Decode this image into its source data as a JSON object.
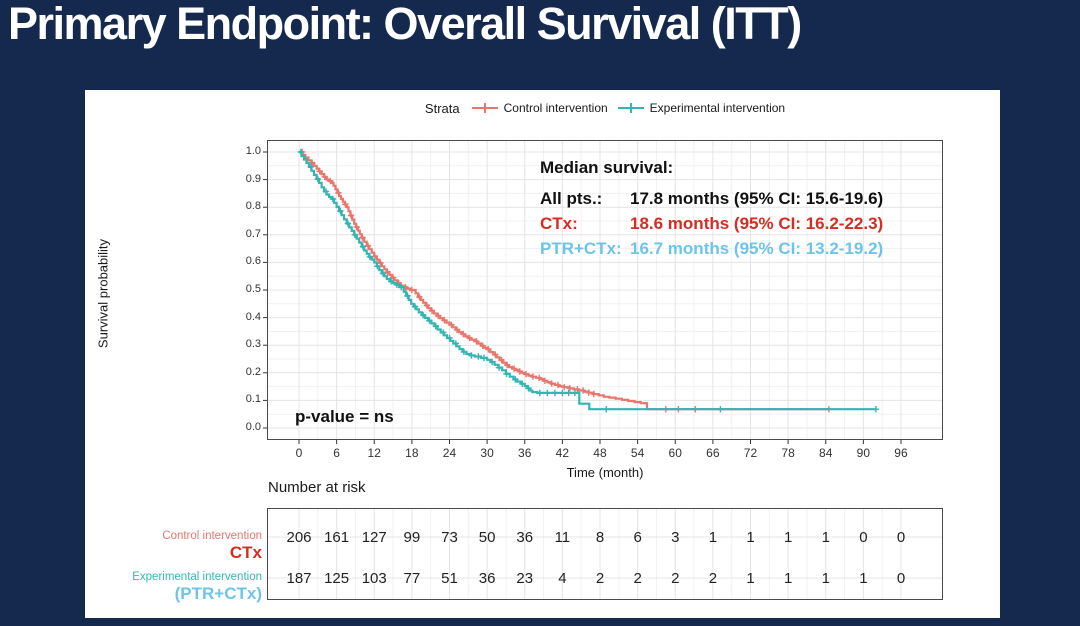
{
  "slide": {
    "title": "Primary Endpoint: Overall Survival (ITT)",
    "colors": {
      "background_navy": "#15294F",
      "card_white": "#FFFFFF",
      "curve_control": "#E9766D",
      "curve_experimental": "#33B6B3",
      "text_red": "#D92B21",
      "text_skyblue": "#6EC4E8",
      "text_black": "#111111",
      "grid_major": "#E4E4E4",
      "grid_minor": "#F1F1F1",
      "panel_border": "#4A4A4A"
    }
  },
  "chart_data": {
    "type": "line",
    "subtype": "kaplan-meier-survival",
    "title": "",
    "xlabel": "Time (month)",
    "ylabel": "Survival probability",
    "xlim": [
      0,
      96
    ],
    "ylim": [
      0.0,
      1.0
    ],
    "xticks": [
      0,
      6,
      12,
      18,
      24,
      30,
      36,
      42,
      48,
      54,
      60,
      66,
      72,
      78,
      84,
      90,
      96
    ],
    "yticks": [
      "1.0",
      "0.9",
      "0.8",
      "0.7",
      "0.6",
      "0.5",
      "0.4",
      "0.3",
      "0.2",
      "0.1",
      "0.0"
    ],
    "grid": "on",
    "legend": {
      "title": "Strata",
      "position": "top",
      "entries": [
        {
          "label": "Control intervention",
          "color": "#E9766D"
        },
        {
          "label": "Experimental intervention",
          "color": "#33B6B3"
        }
      ]
    },
    "series": [
      {
        "name": "Control intervention (CTx)",
        "color": "#E9766D",
        "step_points": [
          [
            0,
            1
          ],
          [
            0.6,
            0.99
          ],
          [
            1,
            0.98
          ],
          [
            1.5,
            0.97
          ],
          [
            2,
            0.96
          ],
          [
            2.4,
            0.95
          ],
          [
            2.8,
            0.94
          ],
          [
            3.2,
            0.93
          ],
          [
            3.6,
            0.92
          ],
          [
            4,
            0.91
          ],
          [
            4.4,
            0.9
          ],
          [
            4.8,
            0.895
          ],
          [
            5.2,
            0.888
          ],
          [
            5.5,
            0.878
          ],
          [
            5.8,
            0.865
          ],
          [
            6.1,
            0.852
          ],
          [
            6.4,
            0.84
          ],
          [
            6.7,
            0.83
          ],
          [
            7,
            0.82
          ],
          [
            7.3,
            0.81
          ],
          [
            7.6,
            0.8
          ],
          [
            7.9,
            0.785
          ],
          [
            8.2,
            0.77
          ],
          [
            8.5,
            0.755
          ],
          [
            8.8,
            0.74
          ],
          [
            9.1,
            0.728
          ],
          [
            9.4,
            0.715
          ],
          [
            9.7,
            0.702
          ],
          [
            10,
            0.69
          ],
          [
            10.4,
            0.675
          ],
          [
            10.8,
            0.66
          ],
          [
            11.2,
            0.648
          ],
          [
            11.6,
            0.635
          ],
          [
            12,
            0.622
          ],
          [
            12.4,
            0.61
          ],
          [
            12.8,
            0.598
          ],
          [
            13.2,
            0.586
          ],
          [
            13.6,
            0.575
          ],
          [
            14,
            0.565
          ],
          [
            14.4,
            0.555
          ],
          [
            14.8,
            0.545
          ],
          [
            15.2,
            0.535
          ],
          [
            15.7,
            0.525
          ],
          [
            16.2,
            0.516
          ],
          [
            16.7,
            0.51
          ],
          [
            17.2,
            0.505
          ],
          [
            17.7,
            0.5
          ],
          [
            18.6,
            0.488
          ],
          [
            19,
            0.475
          ],
          [
            19.4,
            0.464
          ],
          [
            19.8,
            0.454
          ],
          [
            20.2,
            0.444
          ],
          [
            20.6,
            0.434
          ],
          [
            21,
            0.425
          ],
          [
            21.5,
            0.415
          ],
          [
            22,
            0.406
          ],
          [
            22.5,
            0.398
          ],
          [
            23,
            0.39
          ],
          [
            23.5,
            0.382
          ],
          [
            24,
            0.374
          ],
          [
            24.5,
            0.365
          ],
          [
            25,
            0.356
          ],
          [
            25.5,
            0.347
          ],
          [
            26,
            0.34
          ],
          [
            26.5,
            0.332
          ],
          [
            27,
            0.326
          ],
          [
            27.5,
            0.32
          ],
          [
            28,
            0.314
          ],
          [
            28.5,
            0.306
          ],
          [
            29,
            0.298
          ],
          [
            29.5,
            0.291
          ],
          [
            30,
            0.285
          ],
          [
            30.5,
            0.275
          ],
          [
            31,
            0.266
          ],
          [
            31.5,
            0.256
          ],
          [
            32,
            0.246
          ],
          [
            32.5,
            0.237
          ],
          [
            33,
            0.228
          ],
          [
            33.5,
            0.221
          ],
          [
            34,
            0.215
          ],
          [
            34.5,
            0.21
          ],
          [
            35,
            0.205
          ],
          [
            35.5,
            0.2
          ],
          [
            36,
            0.195
          ],
          [
            36.6,
            0.19
          ],
          [
            37.2,
            0.186
          ],
          [
            37.8,
            0.182
          ],
          [
            38.4,
            0.177
          ],
          [
            39,
            0.171
          ],
          [
            39.6,
            0.166
          ],
          [
            40.2,
            0.161
          ],
          [
            40.8,
            0.156
          ],
          [
            41.4,
            0.151
          ],
          [
            42.2,
            0.148
          ],
          [
            43,
            0.144
          ],
          [
            43.8,
            0.14
          ],
          [
            44.6,
            0.136
          ],
          [
            45.4,
            0.132
          ],
          [
            46.2,
            0.128
          ],
          [
            47,
            0.123
          ],
          [
            47.8,
            0.118
          ],
          [
            48.6,
            0.113
          ],
          [
            49.5,
            0.11
          ],
          [
            50.5,
            0.106
          ],
          [
            51.5,
            0.102
          ],
          [
            52.5,
            0.098
          ],
          [
            53.5,
            0.094
          ],
          [
            54.5,
            0.09
          ],
          [
            55.5,
            0.068
          ],
          [
            84.5,
            0.068
          ]
        ],
        "censor_times": [
          0.5,
          2.1,
          3.3,
          4.1,
          5,
          6.3,
          7.4,
          8.3,
          9.2,
          10.1,
          11,
          12.1,
          13,
          14.1,
          15,
          15.9,
          17,
          18,
          19.2,
          20.4,
          21.2,
          22.2,
          23.2,
          24.3,
          25.2,
          26.2,
          27.2,
          28.3,
          29.3,
          30.2,
          31.3,
          32.3,
          33.2,
          34.3,
          35.2,
          36.2,
          37.3,
          38.3,
          39.2,
          40.3,
          41.3,
          42.3,
          43.2,
          44.4,
          45.3,
          46.2,
          47,
          58.5,
          60.5,
          63.2,
          84.5
        ]
      },
      {
        "name": "Experimental intervention (PTR+CTx)",
        "color": "#33B6B3",
        "step_points": [
          [
            0,
            1
          ],
          [
            0.4,
            0.985
          ],
          [
            0.8,
            0.973
          ],
          [
            1.2,
            0.96
          ],
          [
            1.6,
            0.946
          ],
          [
            2,
            0.932
          ],
          [
            2.4,
            0.917
          ],
          [
            2.8,
            0.902
          ],
          [
            3.2,
            0.888
          ],
          [
            3.6,
            0.872
          ],
          [
            4,
            0.857
          ],
          [
            4.4,
            0.846
          ],
          [
            4.8,
            0.837
          ],
          [
            5.2,
            0.83
          ],
          [
            5.6,
            0.816
          ],
          [
            6,
            0.801
          ],
          [
            6.4,
            0.786
          ],
          [
            6.8,
            0.771
          ],
          [
            7.2,
            0.756
          ],
          [
            7.6,
            0.741
          ],
          [
            8,
            0.727
          ],
          [
            8.4,
            0.714
          ],
          [
            8.8,
            0.7
          ],
          [
            9.2,
            0.686
          ],
          [
            9.6,
            0.672
          ],
          [
            10,
            0.657
          ],
          [
            10.4,
            0.643
          ],
          [
            10.8,
            0.631
          ],
          [
            11.2,
            0.62
          ],
          [
            11.6,
            0.61
          ],
          [
            12,
            0.6
          ],
          [
            12.4,
            0.586
          ],
          [
            12.8,
            0.572
          ],
          [
            13.2,
            0.56
          ],
          [
            13.6,
            0.55
          ],
          [
            14,
            0.54
          ],
          [
            14.5,
            0.531
          ],
          [
            15,
            0.525
          ],
          [
            15.5,
            0.519
          ],
          [
            16,
            0.51
          ],
          [
            16.7,
            0.494
          ],
          [
            17.1,
            0.479
          ],
          [
            17.5,
            0.464
          ],
          [
            17.9,
            0.45
          ],
          [
            18.3,
            0.44
          ],
          [
            18.7,
            0.43
          ],
          [
            19.1,
            0.419
          ],
          [
            19.6,
            0.409
          ],
          [
            20.1,
            0.399
          ],
          [
            20.6,
            0.389
          ],
          [
            21.1,
            0.379
          ],
          [
            21.6,
            0.369
          ],
          [
            22.1,
            0.357
          ],
          [
            22.6,
            0.346
          ],
          [
            23.1,
            0.336
          ],
          [
            23.6,
            0.326
          ],
          [
            24.1,
            0.316
          ],
          [
            24.6,
            0.306
          ],
          [
            25.1,
            0.296
          ],
          [
            25.6,
            0.286
          ],
          [
            26.1,
            0.276
          ],
          [
            26.7,
            0.268
          ],
          [
            27.3,
            0.263
          ],
          [
            28,
            0.259
          ],
          [
            29,
            0.254
          ],
          [
            30,
            0.247
          ],
          [
            30.6,
            0.239
          ],
          [
            31.2,
            0.229
          ],
          [
            31.8,
            0.219
          ],
          [
            32.4,
            0.209
          ],
          [
            33,
            0.196
          ],
          [
            33.6,
            0.186
          ],
          [
            34.2,
            0.176
          ],
          [
            34.8,
            0.168
          ],
          [
            35.4,
            0.16
          ],
          [
            36,
            0.152
          ],
          [
            36.4,
            0.144
          ],
          [
            36.8,
            0.136
          ],
          [
            37.2,
            0.13
          ],
          [
            38,
            0.127
          ],
          [
            44.7,
            0.088
          ],
          [
            46.3,
            0.068
          ],
          [
            92,
            0.068
          ]
        ],
        "censor_times": [
          0.3,
          1.9,
          3,
          4.3,
          5.4,
          6.6,
          7.8,
          8.9,
          10.2,
          11.3,
          12.5,
          13.4,
          14.7,
          15.6,
          16.3,
          17.3,
          18.5,
          19.8,
          20.8,
          21.8,
          23,
          24,
          25,
          26.3,
          27.5,
          28.6,
          29.5,
          30.8,
          31.9,
          33.1,
          34.5,
          35.6,
          36.6,
          38.4,
          39.6,
          40.8,
          42,
          43,
          44,
          49,
          67.2,
          92
        ]
      }
    ],
    "annotation": {
      "median_title": "Median survival:",
      "rows": [
        {
          "label": "All pts.:",
          "value": "17.8 months (95% CI: 15.6-19.6)",
          "color": "#111111"
        },
        {
          "label": "CTx:",
          "value": "18.6 months (95% CI: 16.2-22.3)",
          "color": "#D92B21"
        },
        {
          "label": "PTR+CTx:",
          "value": "16.7 months (95% CI: 13.2-19.2)",
          "color": "#6EC4E8"
        }
      ],
      "pvalue": "p-value = ns"
    },
    "risk_table": {
      "title": "Number at risk",
      "time_points": [
        0,
        6,
        12,
        18,
        24,
        30,
        36,
        42,
        48,
        54,
        60,
        66,
        72,
        78,
        84,
        90,
        96
      ],
      "rows": [
        {
          "label_small": "Control intervention",
          "label_small_color": "#E9766D",
          "label_bold": "CTx",
          "label_bold_color": "#D92B21",
          "counts": [
            206,
            161,
            127,
            99,
            73,
            50,
            36,
            11,
            8,
            6,
            3,
            1,
            1,
            1,
            1,
            0,
            0
          ]
        },
        {
          "label_small": "Experimental intervention",
          "label_small_color": "#33B6B3",
          "label_bold": "(PTR+CTx)",
          "label_bold_color": "#6EC4E8",
          "counts": [
            187,
            125,
            103,
            77,
            51,
            36,
            23,
            4,
            2,
            2,
            2,
            2,
            1,
            1,
            1,
            1,
            0
          ]
        }
      ]
    }
  }
}
